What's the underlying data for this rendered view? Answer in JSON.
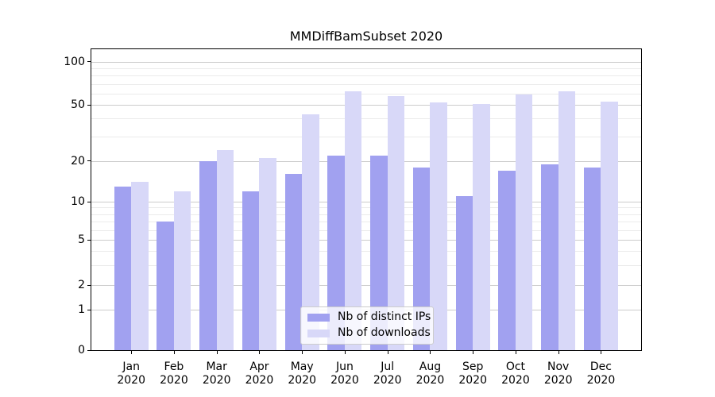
{
  "title": "MMDiffBamSubset 2020",
  "chart_data": {
    "type": "bar",
    "categories": [
      "Jan",
      "Feb",
      "Mar",
      "Apr",
      "May",
      "Jun",
      "Jul",
      "Aug",
      "Sep",
      "Oct",
      "Nov",
      "Dec"
    ],
    "year_label": "2020",
    "series": [
      {
        "name": "Nb of distinct IPs",
        "color": "#a1a1f0",
        "values": [
          13,
          7,
          20,
          12,
          16,
          22,
          22,
          18,
          11,
          17,
          19,
          18
        ]
      },
      {
        "name": "Nb of downloads",
        "color": "#d8d8f8",
        "values": [
          14,
          12,
          24,
          21,
          43,
          62,
          58,
          52,
          51,
          59,
          62,
          53
        ]
      }
    ],
    "y_axis": {
      "scale": "symlog",
      "ticks": [
        100,
        50,
        20,
        10,
        5,
        2,
        1,
        0
      ],
      "major_gridlines": [
        1,
        2,
        5,
        10,
        20,
        50,
        100
      ],
      "minor_gridlines": [
        3,
        4,
        6,
        7,
        8,
        9,
        30,
        40,
        60,
        70,
        80,
        90
      ],
      "ylim": [
        0,
        120
      ]
    },
    "legend_position": "lower center",
    "grid": true
  },
  "legend": {
    "entries": [
      "Nb of distinct IPs",
      "Nb of downloads"
    ]
  },
  "colors": {
    "background": "#ffffff",
    "bar_distinct_ips": "#a1a1f0",
    "bar_downloads": "#d8d8f8",
    "major_grid": "#cccccc",
    "minor_grid": "#ebebeb",
    "axis": "#000000",
    "legend_border": "#cccccc"
  }
}
